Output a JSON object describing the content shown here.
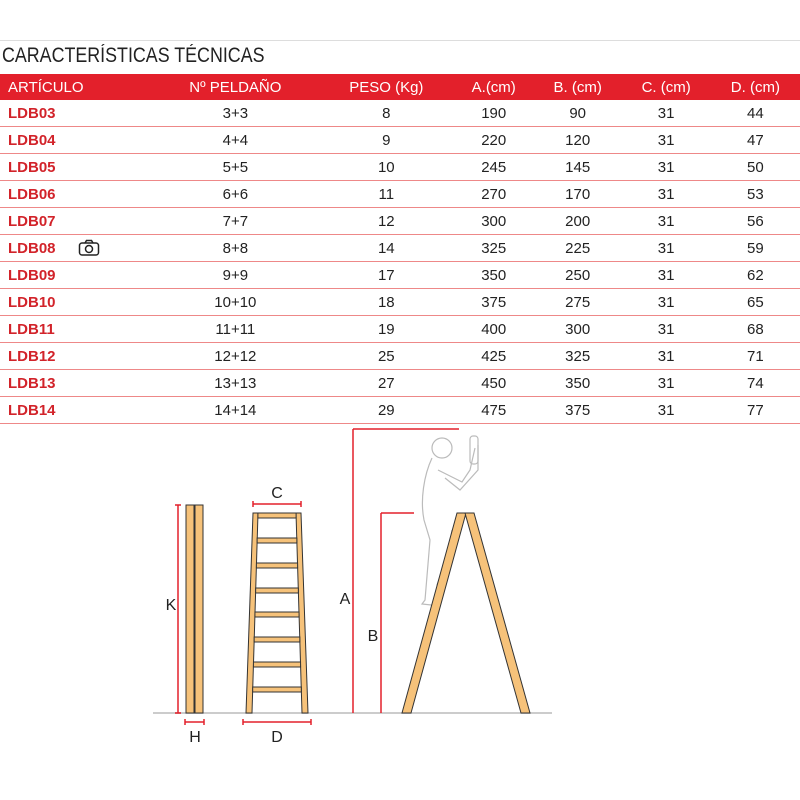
{
  "title": "CARACTERÍSTICAS TÉCNICAS",
  "table": {
    "headers": [
      "ARTÍCULO",
      "Nº PELDAÑO",
      "PESO (Kg)",
      "A.(cm)",
      "B. (cm)",
      "C. (cm)",
      "D. (cm)"
    ],
    "rows": [
      [
        "LDB03",
        "3+3",
        "8",
        "190",
        "90",
        "31",
        "44"
      ],
      [
        "LDB04",
        "4+4",
        "9",
        "220",
        "120",
        "31",
        "47"
      ],
      [
        "LDB05",
        "5+5",
        "10",
        "245",
        "145",
        "31",
        "50"
      ],
      [
        "LDB06",
        "6+6",
        "11",
        "270",
        "170",
        "31",
        "53"
      ],
      [
        "LDB07",
        "7+7",
        "12",
        "300",
        "200",
        "31",
        "56"
      ],
      [
        "LDB08",
        "8+8",
        "14",
        "325",
        "225",
        "31",
        "59"
      ],
      [
        "LDB09",
        "9+9",
        "17",
        "350",
        "250",
        "31",
        "62"
      ],
      [
        "LDB10",
        "10+10",
        "18",
        "375",
        "275",
        "31",
        "65"
      ],
      [
        "LDB11",
        "11+11",
        "19",
        "400",
        "300",
        "31",
        "68"
      ],
      [
        "LDB12",
        "12+12",
        "25",
        "425",
        "325",
        "31",
        "71"
      ],
      [
        "LDB13",
        "13+13",
        "27",
        "450",
        "350",
        "31",
        "74"
      ],
      [
        "LDB14",
        "14+14",
        "29",
        "475",
        "375",
        "31",
        "77"
      ]
    ],
    "camera_row": "LDB08"
  },
  "diagram": {
    "labels": {
      "K": "K",
      "H": "H",
      "C": "C",
      "D": "D",
      "A": "A",
      "B": "B"
    }
  },
  "colors": {
    "accent": "#e3202b",
    "wood": "#f6c27a"
  }
}
